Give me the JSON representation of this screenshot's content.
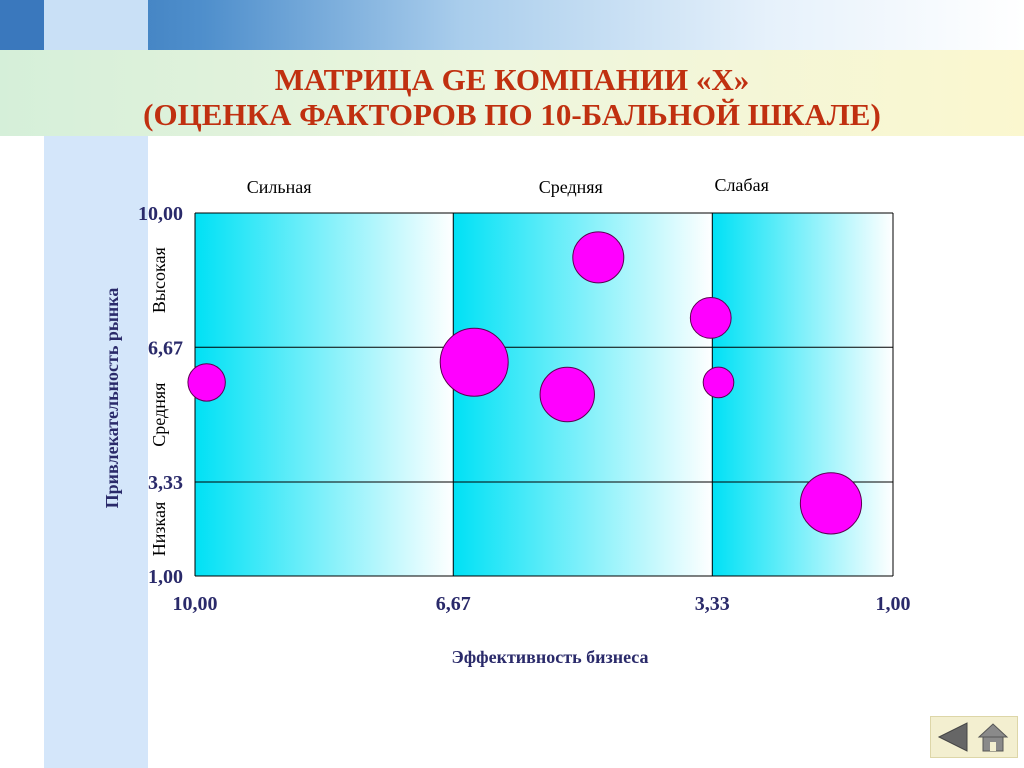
{
  "slide": {
    "title_line1": "МАТРИЦА GE КОМПАНИИ «Х»",
    "title_line2": "(ОЦЕНКА ФАКТОРОВ ПО 10-БАЛЬНОЙ ШКАЛЕ)"
  },
  "colors": {
    "title": "#c03010",
    "axis_text": "#2a2a6a",
    "bubble_fill": "#ff00ff",
    "bubble_stroke": "#5a0050",
    "cell_gradient_start": "#00e1f5",
    "cell_gradient_end": "#ffffff"
  },
  "chart_data": {
    "type": "scatter",
    "xlabel": "Эффективность бизнеса",
    "ylabel": "Привлекательность рынка",
    "x_ticks": [
      "10,00",
      "6,67",
      "3,33",
      "1,00"
    ],
    "y_ticks": [
      "10,00",
      "6,67",
      "3,33",
      "1,00"
    ],
    "x_tick_values": [
      10,
      6.67,
      3.33,
      1
    ],
    "y_tick_values": [
      10,
      6.67,
      3.33,
      1
    ],
    "xlim": [
      10,
      1
    ],
    "ylim": [
      1,
      10
    ],
    "x_reversed": true,
    "column_labels": [
      "Сильная",
      "Средняя",
      "Слабая"
    ],
    "row_labels": [
      "Высокая",
      "Средняя",
      "Низкая"
    ],
    "grid": true,
    "points": [
      {
        "x": 9.85,
        "y": 5.8,
        "size": 1.1
      },
      {
        "x": 6.4,
        "y": 6.3,
        "size": 2.0
      },
      {
        "x": 5.2,
        "y": 5.5,
        "size": 1.6
      },
      {
        "x": 4.8,
        "y": 8.9,
        "size": 1.5
      },
      {
        "x": 3.35,
        "y": 7.4,
        "size": 1.2
      },
      {
        "x": 3.25,
        "y": 5.8,
        "size": 0.9
      },
      {
        "x": 1.8,
        "y": 2.8,
        "size": 1.8
      }
    ]
  }
}
